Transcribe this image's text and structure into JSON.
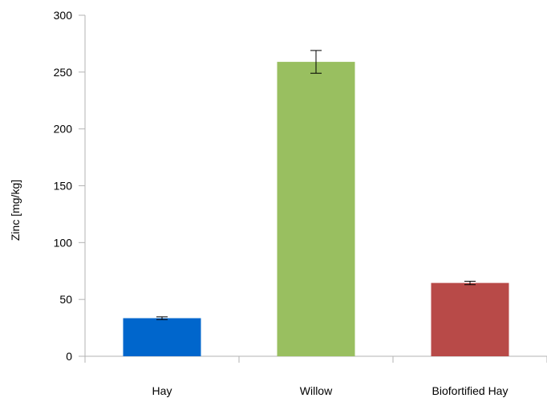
{
  "chart_data": {
    "type": "bar",
    "title": "",
    "xlabel": "",
    "ylabel": "Zinc [mg/kg]",
    "categories": [
      "Hay",
      "Willow",
      "Biofortified Hay"
    ],
    "values": [
      33.5,
      259,
      64.5
    ],
    "error": [
      1.2,
      10,
      1.5
    ],
    "colors": [
      "#0066cc",
      "#99bf60",
      "#b84a48"
    ],
    "ylim": [
      0,
      300
    ],
    "yticks": [
      0,
      50,
      100,
      150,
      200,
      250,
      300
    ],
    "ytick_labels": [
      "0",
      "50",
      "100",
      "150",
      "200",
      "250",
      "300"
    ],
    "grid": false,
    "legend": "none"
  }
}
